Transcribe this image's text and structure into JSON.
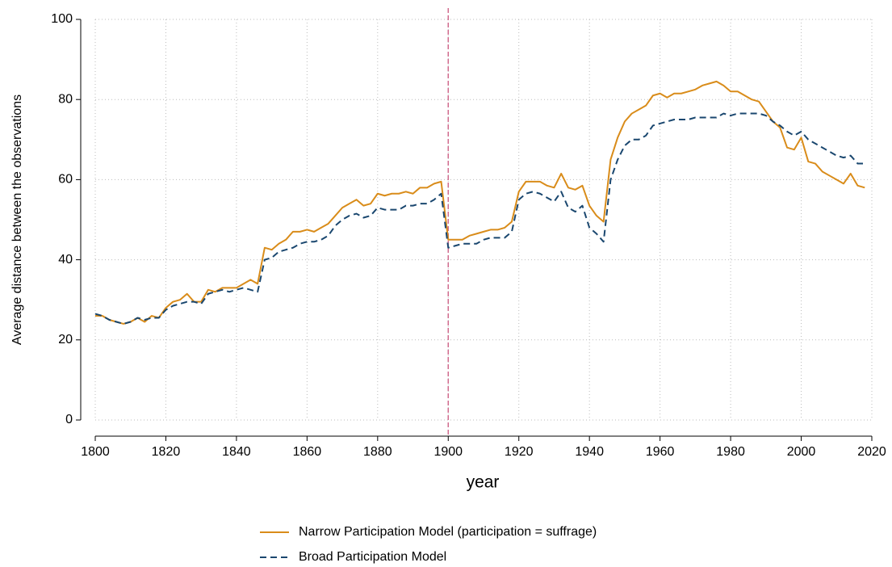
{
  "chart_data": {
    "type": "line",
    "xlabel": "year",
    "ylabel": "Average distance between the observations",
    "x": [
      1800,
      1802,
      1804,
      1806,
      1808,
      1810,
      1812,
      1814,
      1816,
      1818,
      1820,
      1822,
      1824,
      1826,
      1828,
      1830,
      1832,
      1834,
      1836,
      1838,
      1840,
      1842,
      1844,
      1846,
      1848,
      1850,
      1852,
      1854,
      1856,
      1858,
      1860,
      1862,
      1864,
      1866,
      1868,
      1870,
      1872,
      1874,
      1876,
      1878,
      1880,
      1882,
      1884,
      1886,
      1888,
      1890,
      1892,
      1894,
      1896,
      1898,
      1900,
      1902,
      1904,
      1906,
      1908,
      1910,
      1912,
      1914,
      1916,
      1918,
      1920,
      1922,
      1924,
      1926,
      1928,
      1930,
      1932,
      1934,
      1936,
      1938,
      1940,
      1942,
      1944,
      1946,
      1948,
      1950,
      1952,
      1954,
      1956,
      1958,
      1960,
      1962,
      1964,
      1966,
      1968,
      1970,
      1972,
      1974,
      1976,
      1978,
      1980,
      1982,
      1984,
      1986,
      1988,
      1990,
      1992,
      1994,
      1996,
      1998,
      2000,
      2002,
      2004,
      2006,
      2008,
      2010,
      2012,
      2014,
      2016,
      2018
    ],
    "series": [
      {
        "name": "Narrow Participation Model (participation = suffrage)",
        "color": "#d98c1a",
        "style": "solid",
        "values": [
          26,
          26,
          25,
          24.5,
          24,
          24.5,
          25.5,
          24.5,
          26,
          25.5,
          28,
          29.5,
          30,
          31.5,
          29.5,
          29.5,
          32.5,
          32,
          33,
          33,
          33,
          34,
          35,
          34,
          43,
          42.5,
          44,
          45,
          47,
          47,
          47.5,
          47,
          48,
          49,
          51,
          53,
          54,
          55,
          53.5,
          54,
          56.5,
          56,
          56.5,
          56.5,
          57,
          56.5,
          58,
          58,
          59,
          59.5,
          45,
          45,
          45,
          46,
          46.5,
          47,
          47.5,
          47.5,
          48,
          49.5,
          57,
          59.5,
          59.5,
          59.5,
          58.5,
          58,
          61.5,
          58,
          57.5,
          58.5,
          53.5,
          51,
          49.5,
          65,
          70.5,
          74.5,
          76.5,
          77.5,
          78.5,
          81,
          81.5,
          80.5,
          81.5,
          81.5,
          82,
          82.5,
          83.5,
          84,
          84.5,
          83.5,
          82,
          82,
          81,
          80,
          79.5,
          77,
          74.5,
          73,
          68,
          67.5,
          70.5,
          64.5,
          64,
          62,
          61,
          60,
          59,
          61.5,
          58.5,
          58
        ]
      },
      {
        "name": "Broad Participation Model",
        "color": "#1a476f",
        "style": "dashed",
        "values": [
          26.5,
          26,
          25,
          24.5,
          24,
          24.5,
          25.5,
          25,
          25.5,
          25.5,
          27.5,
          28.5,
          29,
          29.5,
          29.5,
          29,
          31.5,
          32,
          32.5,
          32,
          32.5,
          33,
          32.5,
          32,
          40,
          40.5,
          42,
          42.5,
          43,
          44,
          44.5,
          44.5,
          45,
          46,
          48.5,
          50,
          51,
          51.5,
          50.5,
          51,
          53,
          52.5,
          52.5,
          52.5,
          53.5,
          53.5,
          54,
          54,
          55,
          56.5,
          43,
          43.5,
          44,
          44,
          44,
          45,
          45.5,
          45.5,
          45.5,
          47,
          55,
          56.5,
          57,
          56.5,
          55.5,
          54.5,
          57,
          53,
          52,
          53.5,
          48,
          46.5,
          44.5,
          60,
          65,
          68.5,
          70,
          70,
          71,
          73.5,
          74,
          74.5,
          75,
          75,
          75,
          75.5,
          75.5,
          75.5,
          75.5,
          76.5,
          76,
          76.5,
          76.5,
          76.5,
          76.5,
          76,
          74.5,
          73.5,
          72,
          71,
          72,
          70,
          69,
          68,
          67,
          66,
          65.5,
          66,
          64,
          64
        ]
      }
    ],
    "vline": 1900,
    "vline_color": "#d16b8e",
    "xlim": [
      1800,
      2020
    ],
    "xticks": [
      1800,
      1820,
      1840,
      1860,
      1880,
      1900,
      1920,
      1940,
      1960,
      1980,
      2000,
      2020
    ],
    "ylim": [
      0,
      100
    ],
    "yticks": [
      0,
      20,
      40,
      60,
      80,
      100
    ],
    "grid": true,
    "legend": "bottom"
  }
}
